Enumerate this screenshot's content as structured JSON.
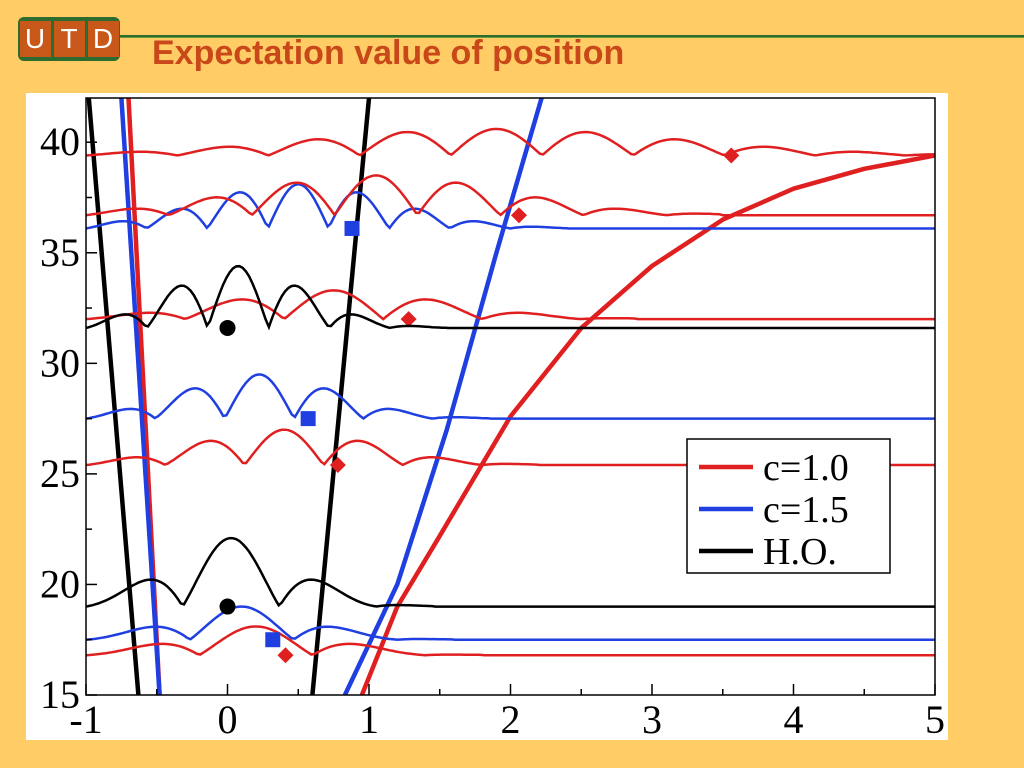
{
  "header": {
    "logo_letters": [
      "U",
      "T",
      "D"
    ],
    "title": "Expectation value of position"
  },
  "colors": {
    "background": "#FFCC66",
    "title": "#C8481A",
    "logo_frame": "#2E6B2E",
    "logo_cells": "#C8581A",
    "c_1_0": "#E02020",
    "c_1_5": "#1F3FE0",
    "ho": "#000000"
  },
  "chart_data": {
    "type": "line",
    "title": "",
    "xlabel": "",
    "ylabel": "",
    "xlim": [
      -1,
      5
    ],
    "ylim": [
      15,
      42
    ],
    "x_ticks": [
      "-1",
      "0",
      "1",
      "2",
      "3",
      "4",
      "5"
    ],
    "y_ticks": [
      "15",
      "20",
      "25",
      "30",
      "35",
      "40"
    ],
    "grid": false,
    "legend_position": "center-right",
    "legend": [
      {
        "label": "c=1.0",
        "color": "#E02020"
      },
      {
        "label": "c=1.5",
        "color": "#1F3FE0"
      },
      {
        "label": "H.O.",
        "color": "#000000"
      }
    ],
    "potentials": [
      {
        "series": "H.O.",
        "color": "#000000",
        "points": [
          [
            -0.98,
            42
          ],
          [
            -0.63,
            15
          ]
        ]
      },
      {
        "series": "H.O.",
        "color": "#000000",
        "points": [
          [
            0.6,
            15
          ],
          [
            1.0,
            42
          ]
        ]
      },
      {
        "series": "c=1.0",
        "color": "#E02020",
        "points": [
          [
            -0.7,
            42
          ],
          [
            -0.48,
            15
          ]
        ]
      },
      {
        "series": "c=1.5",
        "color": "#1F3FE0",
        "points": [
          [
            -0.75,
            42
          ],
          [
            -0.48,
            15
          ]
        ]
      },
      {
        "series": "c=1.5",
        "color": "#1F3FE0",
        "points": [
          [
            0.83,
            15
          ],
          [
            1.2,
            20
          ],
          [
            1.55,
            27
          ],
          [
            1.9,
            35
          ],
          [
            2.22,
            42
          ]
        ]
      },
      {
        "series": "c=1.0",
        "color": "#E02020",
        "points": [
          [
            0.95,
            15
          ],
          [
            1.2,
            19
          ],
          [
            1.5,
            22.2
          ],
          [
            2.0,
            27.6
          ],
          [
            2.5,
            31.6
          ],
          [
            3.0,
            34.4
          ],
          [
            3.5,
            36.5
          ],
          [
            4.0,
            37.9
          ],
          [
            4.5,
            38.8
          ],
          [
            5.0,
            39.4
          ]
        ]
      }
    ],
    "eigenstates": [
      {
        "series": "c=1.0",
        "energy": 16.8,
        "amplitude": 1.3,
        "nodes": 2,
        "x_left": -1.0,
        "x_right": 1.4,
        "marker": [
          0.41,
          16.8
        ],
        "marker_shape": "diamond"
      },
      {
        "series": "c=1.5",
        "energy": 17.5,
        "amplitude": 1.5,
        "nodes": 2,
        "x_left": -1.0,
        "x_right": 1.2,
        "marker": [
          0.32,
          17.5
        ],
        "marker_shape": "square"
      },
      {
        "series": "H.O.",
        "energy": 19.0,
        "amplitude": 3.1,
        "nodes": 2,
        "x_left": -1.0,
        "x_right": 1.05,
        "marker": [
          0.0,
          19.0
        ],
        "marker_shape": "circle"
      },
      {
        "series": "c=1.0",
        "energy": 25.4,
        "amplitude": 1.6,
        "nodes": 4,
        "x_left": -1.0,
        "x_right": 1.8,
        "marker": [
          0.78,
          25.4
        ],
        "marker_shape": "diamond"
      },
      {
        "series": "c=1.5",
        "energy": 27.5,
        "amplitude": 2.0,
        "nodes": 4,
        "x_left": -1.0,
        "x_right": 1.45,
        "marker": [
          0.57,
          27.5
        ],
        "marker_shape": "square"
      },
      {
        "series": "c=1.0",
        "energy": 32.0,
        "amplitude": 1.3,
        "nodes": 4,
        "x_left": -1.0,
        "x_right": 2.5,
        "marker": [
          1.28,
          32.0
        ],
        "marker_shape": "diamond"
      },
      {
        "series": "H.O.",
        "energy": 31.6,
        "amplitude": 2.8,
        "nodes": 4,
        "x_left": -1.0,
        "x_right": 1.15,
        "marker": [
          0.0,
          31.6
        ],
        "marker_shape": "circle"
      },
      {
        "series": "c=1.5",
        "energy": 36.1,
        "amplitude": 2.0,
        "nodes": 6,
        "x_left": -1.0,
        "x_right": 2.0,
        "marker": [
          0.88,
          36.1
        ],
        "marker_shape": "square"
      },
      {
        "series": "c=1.0",
        "energy": 36.7,
        "amplitude": 1.8,
        "nodes": 6,
        "x_left": -1.0,
        "x_right": 3.1,
        "marker": [
          2.06,
          36.7
        ],
        "marker_shape": "diamond"
      },
      {
        "series": "c=1.0",
        "energy": 39.4,
        "amplitude": 1.2,
        "nodes": 8,
        "x_left": -1.0,
        "x_right": 4.8,
        "marker": [
          3.56,
          39.4
        ],
        "marker_shape": "diamond"
      }
    ]
  }
}
